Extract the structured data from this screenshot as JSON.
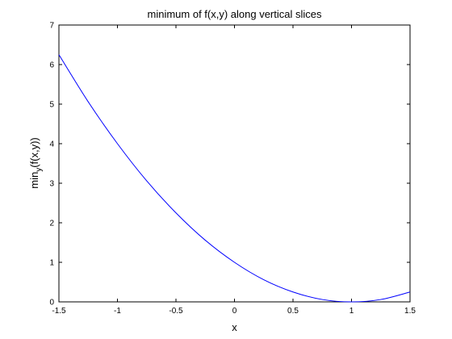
{
  "chart_data": {
    "type": "line",
    "title": "minimum of f(x,y) along vertical slices",
    "xlabel": "x",
    "ylabel": {
      "main": "min",
      "subscript": "y",
      "suffix": "(f(x,y))"
    },
    "xlim": [
      -1.5,
      1.5
    ],
    "ylim": [
      0,
      7
    ],
    "xticks": [
      -1.5,
      -1,
      -0.5,
      0,
      0.5,
      1,
      1.5
    ],
    "xtick_labels": [
      "-1.5",
      "-1",
      "-0.5",
      "0",
      "0.5",
      "1",
      "1.5"
    ],
    "yticks": [
      0,
      1,
      2,
      3,
      4,
      5,
      6,
      7
    ],
    "ytick_labels": [
      "0",
      "1",
      "2",
      "3",
      "4",
      "5",
      "6",
      "7"
    ],
    "grid": false,
    "series": [
      {
        "color": "#0000ff",
        "x": [
          -1.5,
          -1.25,
          -1.0,
          -0.75,
          -0.5,
          -0.25,
          0.0,
          0.25,
          0.5,
          0.75,
          1.0,
          1.25,
          1.5
        ],
        "y": [
          6.25,
          5.06,
          4.0,
          3.06,
          2.25,
          1.56,
          1.0,
          0.56,
          0.25,
          0.06,
          0.0,
          0.06,
          0.25
        ]
      }
    ]
  }
}
